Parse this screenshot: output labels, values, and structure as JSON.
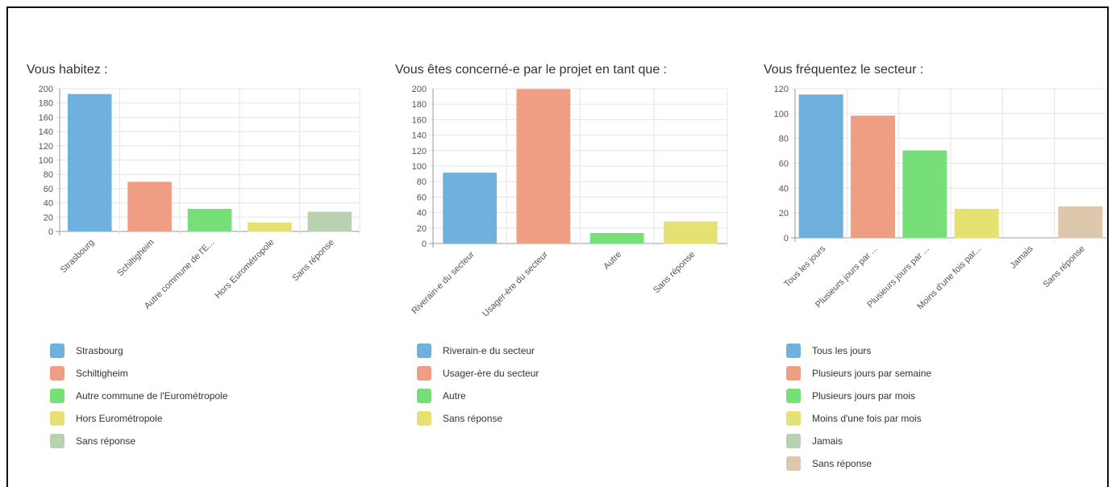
{
  "palette": [
    "#6fb0dd",
    "#ef9e83",
    "#77df77",
    "#e5e273",
    "#b7d1b1",
    "#ddc8ad"
  ],
  "chart_data": [
    {
      "type": "bar",
      "title": "Vous habitez :",
      "categories": [
        "Strasbourg",
        "Schiltigheim",
        "Autre commune de l'E...",
        "Hors Eurométropole",
        "Sans réponse"
      ],
      "values": [
        192,
        69,
        31,
        12,
        27
      ],
      "ylim": [
        0,
        200
      ],
      "yticks": [
        "200",
        "180",
        "160",
        "140",
        "120",
        "100",
        "80",
        "60",
        "40",
        "20",
        "0"
      ],
      "grid": true,
      "legend_position": "bottom",
      "legend": [
        "Strasbourg",
        "Schiltigheim",
        "Autre commune de l'Eurométropole",
        "Hors Eurométropole",
        "Sans réponse"
      ]
    },
    {
      "type": "bar",
      "title": "Vous êtes concerné-e par le projet en tant que :",
      "categories": [
        "Riverain-e du secteur",
        "Usager-ère du secteur",
        "Autre",
        "Sans réponse"
      ],
      "values": [
        91,
        199,
        13,
        28
      ],
      "ylim": [
        0,
        200
      ],
      "yticks": [
        "200",
        "180",
        "160",
        "140",
        "120",
        "100",
        "80",
        "60",
        "40",
        "20",
        "0"
      ],
      "grid": true,
      "legend_position": "bottom",
      "legend": [
        "Riverain-e du secteur",
        "Usager-ère du secteur",
        "Autre",
        "Sans réponse"
      ]
    },
    {
      "type": "bar",
      "title": "Vous fréquentez le secteur :",
      "categories": [
        "Tous les jours",
        "Plusieurs jours par ...",
        "Plusieurs jours par ...",
        "Moins d'une fois par...",
        "Jamais",
        "Sans réponse"
      ],
      "values": [
        115,
        98,
        70,
        23,
        0,
        25
      ],
      "ylim": [
        0,
        120
      ],
      "yticks": [
        "120",
        "100",
        "80",
        "60",
        "40",
        "20",
        "0"
      ],
      "grid": true,
      "legend_position": "bottom",
      "legend": [
        "Tous les jours",
        "Plusieurs jours par semaine",
        "Plusieurs jours par mois",
        "Moins d'une fois par mois",
        "Jamais",
        "Sans réponse"
      ]
    }
  ]
}
